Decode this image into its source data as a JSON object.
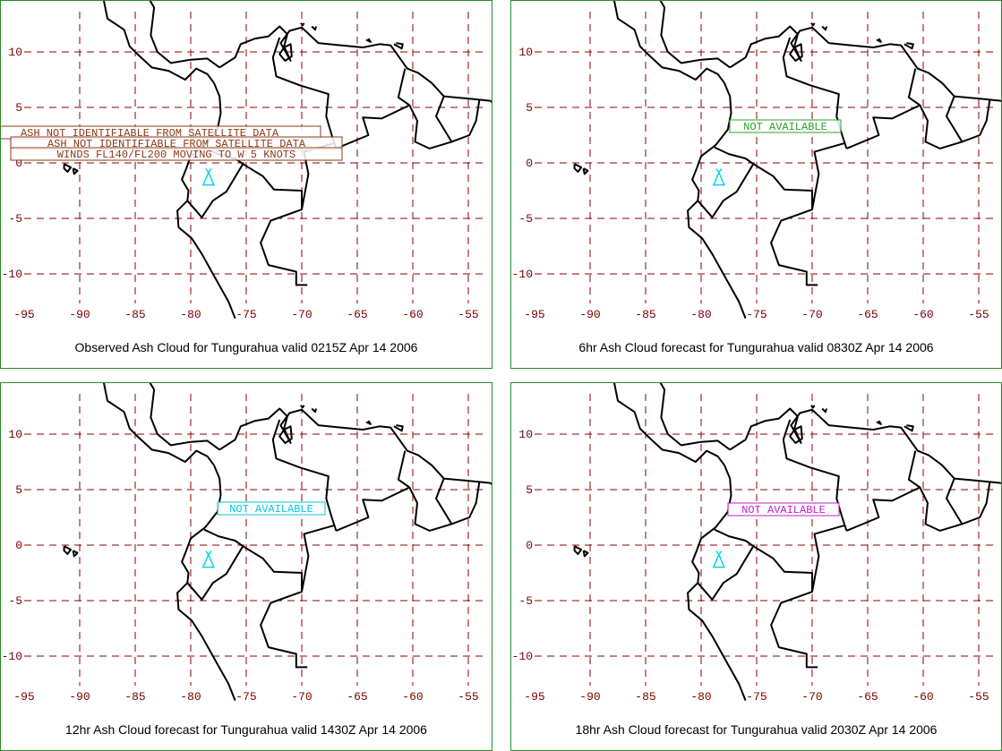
{
  "panels": [
    {
      "caption": "Observed Ash Cloud for Tungurahua valid 0215Z Apr 14 2006",
      "notes": [
        {
          "text": "ASH NOT IDENTIFIABLE FROM SATELLITE DATA",
          "color": "#8b3a1a"
        },
        {
          "text": "ASH NOT IDENTIFIABLE FROM SATELLITE DATA",
          "color": "#8b3a1a"
        },
        {
          "text": "WINDS FL140/FL200 MOVING TO W 5 KNOTS",
          "color": "#8b3a1a"
        }
      ],
      "volcano_color": "#00d8e8"
    },
    {
      "caption": "6hr Ash Cloud forecast for Tungurahua valid 0830Z Apr 14 2006",
      "notes": [
        {
          "text": "NOT AVAILABLE",
          "color": "#2aa02a"
        }
      ],
      "volcano_color": "#00d8e8"
    },
    {
      "caption": "12hr Ash Cloud forecast for Tungurahua valid 1430Z Apr 14 2006",
      "notes": [
        {
          "text": "NOT AVAILABLE",
          "color": "#00c8d8"
        }
      ],
      "volcano_color": "#00d8e8"
    },
    {
      "caption": "18hr Ash Cloud forecast for Tungurahua valid 2030Z Apr 14 2006",
      "notes": [
        {
          "text": "NOT AVAILABLE",
          "color": "#c020c0"
        }
      ],
      "volcano_color": "#00d8e8"
    }
  ],
  "axes": {
    "lat_ticks": [
      "10",
      "5",
      "0",
      "-5",
      "-10"
    ],
    "lon_ticks": [
      "-95",
      "-90",
      "-85",
      "-80",
      "-75",
      "-70",
      "-65",
      "-60",
      "-55"
    ]
  },
  "colors": {
    "panel_border": "#2a8a2a",
    "grid": "#8b0000",
    "tick_label": "#7a0000",
    "coastline": "#000000"
  }
}
